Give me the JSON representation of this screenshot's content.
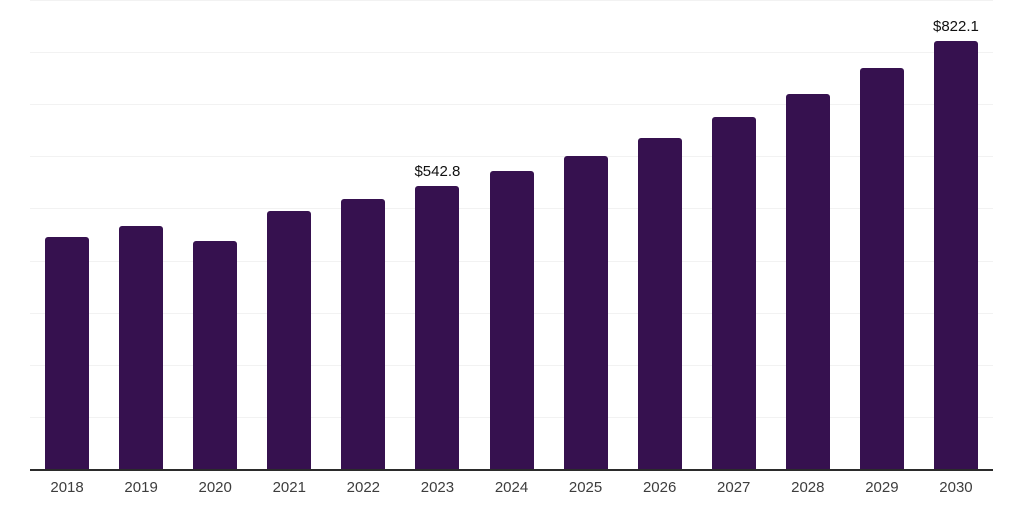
{
  "chart_data": {
    "type": "bar",
    "categories": [
      "2018",
      "2019",
      "2020",
      "2021",
      "2022",
      "2023",
      "2024",
      "2025",
      "2026",
      "2027",
      "2028",
      "2029",
      "2030"
    ],
    "values": [
      445.8,
      466.1,
      437.3,
      494.9,
      517.7,
      542.8,
      571.4,
      601.5,
      635.3,
      675.7,
      719.3,
      768.7,
      822.1
    ],
    "data_labels": [
      {
        "category": "2023",
        "text": "$542.8"
      },
      {
        "category": "2030",
        "text": "$822.1"
      }
    ],
    "title": "",
    "xlabel": "",
    "ylabel": "",
    "ylim": [
      0,
      900
    ],
    "gridline_step": 100,
    "grid": true,
    "legend": "none",
    "colors": {
      "bar": "#36114f",
      "gridline": "#f2f2f2",
      "axis_line": "#2b2b2b",
      "tick_label": "#3d3d3d",
      "value_label": "#111111",
      "background": "#ffffff"
    }
  }
}
